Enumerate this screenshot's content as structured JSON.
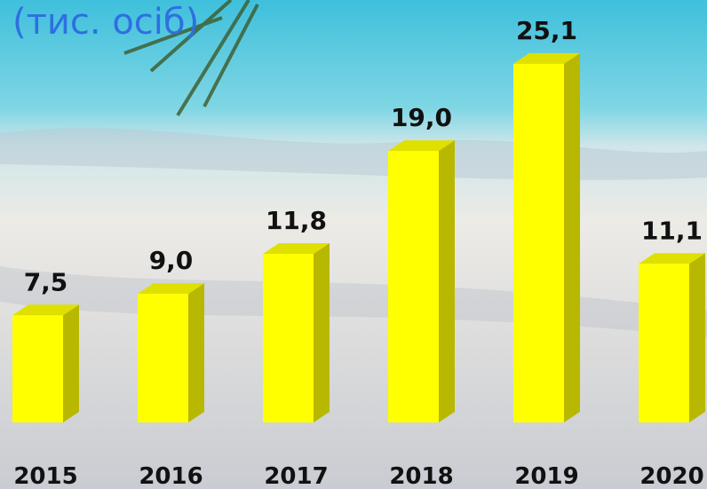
{
  "chart_data": {
    "type": "bar",
    "title": "(тис. осіб)",
    "categories": [
      "2015",
      "2016",
      "2017",
      "2018",
      "2019",
      "2020"
    ],
    "values": [
      7.5,
      9.0,
      11.8,
      19.0,
      25.1,
      11.1
    ],
    "value_labels": [
      "7,5",
      "9,0",
      "11,8",
      "19,0",
      "25,1",
      "11,1"
    ],
    "color": "#ffff00"
  }
}
